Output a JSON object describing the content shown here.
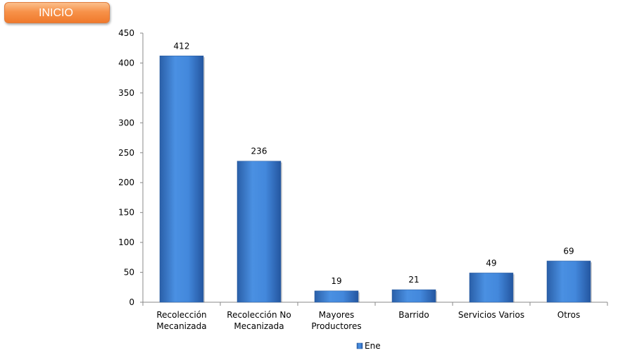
{
  "button": {
    "label": "INICIO"
  },
  "chart_data": {
    "type": "bar",
    "categories": [
      [
        "Recolección",
        "Mecanizada"
      ],
      [
        "Recolección No",
        "Mecanizada"
      ],
      [
        "Mayores",
        "Productores"
      ],
      [
        "Barrido"
      ],
      [
        "Servicios Varios"
      ],
      [
        "Otros"
      ]
    ],
    "series": [
      {
        "name": "Ene",
        "values": [
          412,
          236,
          19,
          21,
          49,
          69
        ],
        "color": "#3a7fd6"
      }
    ],
    "ylim": [
      0,
      450
    ],
    "yticks": [
      0,
      50,
      100,
      150,
      200,
      250,
      300,
      350,
      400,
      450
    ],
    "grid": false,
    "legend_position": "bottom"
  }
}
